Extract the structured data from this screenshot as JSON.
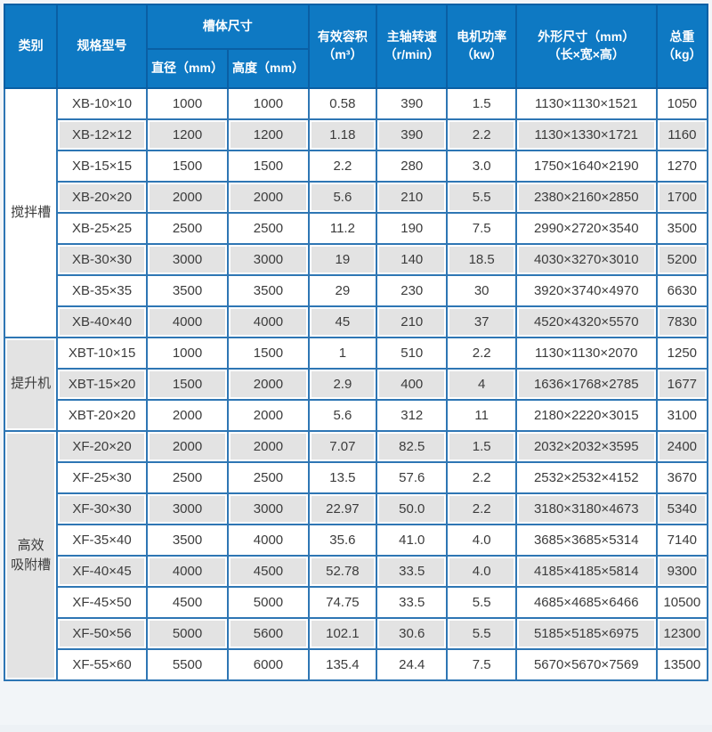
{
  "colors": {
    "header_bg": "#0e79c3",
    "header_border": "#0a5fa4",
    "header_text": "#ffffff",
    "grid_border": "#2e76b4",
    "outer_border": "#1667aa",
    "row_bg": "#ffffff",
    "row_alt_bg": "#e3e3e3",
    "cell_text": "#3c3c3c"
  },
  "table": {
    "header": {
      "category": "类别",
      "model": "规格型号",
      "tank_size": "槽体尺寸",
      "diameter": "直径（mm）",
      "height": "高度（mm）",
      "volume": {
        "line1": "有效容积",
        "line2": "（m³）"
      },
      "speed": {
        "line1": "主轴转速",
        "line2": "（r/min）"
      },
      "power": {
        "line1": "电机功率",
        "line2": "（kw）"
      },
      "dimensions": {
        "line1": "外形尺寸（mm）",
        "line2": "（长×宽×高）"
      },
      "weight": {
        "line1": "总重",
        "line2": "（kg）"
      }
    },
    "groups": [
      {
        "category": "搅拌槽",
        "category_lines": [
          "搅拌槽"
        ],
        "category_shaded": false,
        "rows": [
          [
            "XB-10×10",
            "1000",
            "1000",
            "0.58",
            "390",
            "1.5",
            "1130×1130×1521",
            "1050"
          ],
          [
            "XB-12×12",
            "1200",
            "1200",
            "1.18",
            "390",
            "2.2",
            "1130×1330×1721",
            "1160"
          ],
          [
            "XB-15×15",
            "1500",
            "1500",
            "2.2",
            "280",
            "3.0",
            "1750×1640×2190",
            "1270"
          ],
          [
            "XB-20×20",
            "2000",
            "2000",
            "5.6",
            "210",
            "5.5",
            "2380×2160×2850",
            "1700"
          ],
          [
            "XB-25×25",
            "2500",
            "2500",
            "11.2",
            "190",
            "7.5",
            "2990×2720×3540",
            "3500"
          ],
          [
            "XB-30×30",
            "3000",
            "3000",
            "19",
            "140",
            "18.5",
            "4030×3270×3010",
            "5200"
          ],
          [
            "XB-35×35",
            "3500",
            "3500",
            "29",
            "230",
            "30",
            "3920×3740×4970",
            "6630"
          ],
          [
            "XB-40×40",
            "4000",
            "4000",
            "45",
            "210",
            "37",
            "4520×4320×5570",
            "7830"
          ]
        ]
      },
      {
        "category": "提升机",
        "category_lines": [
          "提升机"
        ],
        "category_shaded": true,
        "rows": [
          [
            "XBT-10×15",
            "1000",
            "1500",
            "1",
            "510",
            "2.2",
            "1130×1130×2070",
            "1250"
          ],
          [
            "XBT-15×20",
            "1500",
            "2000",
            "2.9",
            "400",
            "4",
            "1636×1768×2785",
            "1677"
          ],
          [
            "XBT-20×20",
            "2000",
            "2000",
            "5.6",
            "312",
            "11",
            "2180×2220×3015",
            "3100"
          ]
        ]
      },
      {
        "category": "高效吸附槽",
        "category_lines": [
          "高效",
          "吸附槽"
        ],
        "category_shaded": false,
        "rows": [
          [
            "XF-20×20",
            "2000",
            "2000",
            "7.07",
            "82.5",
            "1.5",
            "2032×2032×3595",
            "2400"
          ],
          [
            "XF-25×30",
            "2500",
            "2500",
            "13.5",
            "57.6",
            "2.2",
            "2532×2532×4152",
            "3670"
          ],
          [
            "XF-30×30",
            "3000",
            "3000",
            "22.97",
            "50.0",
            "2.2",
            "3180×3180×4673",
            "5340"
          ],
          [
            "XF-35×40",
            "3500",
            "4000",
            "35.6",
            "41.0",
            "4.0",
            "3685×3685×5314",
            "7140"
          ],
          [
            "XF-40×45",
            "4000",
            "4500",
            "52.78",
            "33.5",
            "4.0",
            "4185×4185×5814",
            "9300"
          ],
          [
            "XF-45×50",
            "4500",
            "5000",
            "74.75",
            "33.5",
            "5.5",
            "4685×4685×6466",
            "10500"
          ],
          [
            "XF-50×56",
            "5000",
            "5600",
            "102.1",
            "30.6",
            "5.5",
            "5185×5185×6975",
            "12300"
          ],
          [
            "XF-55×60",
            "5500",
            "6000",
            "135.4",
            "24.4",
            "7.5",
            "5670×5670×7569",
            "13500"
          ]
        ]
      }
    ]
  }
}
